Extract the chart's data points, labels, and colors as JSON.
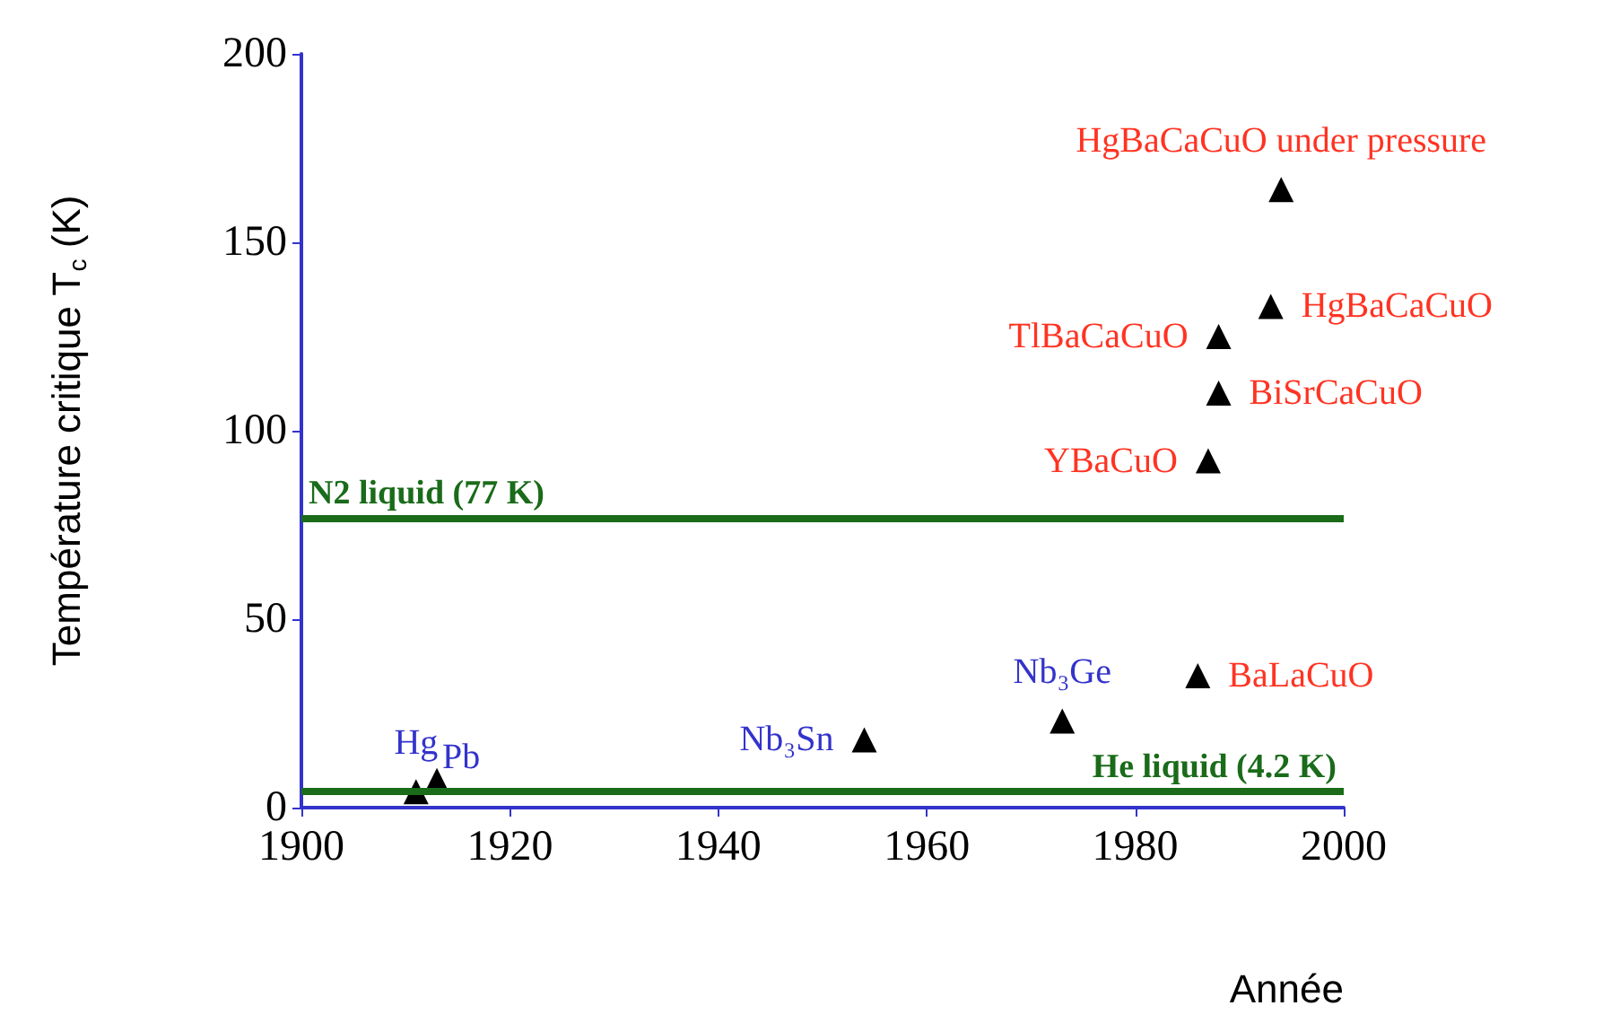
{
  "chart_data": {
    "type": "scatter",
    "xlabel": "Année",
    "ylabel": "Température critique T$_{c}$ (K)",
    "xlim": [
      1900,
      2000
    ],
    "xticks": [
      1900,
      1920,
      1940,
      1960,
      1980,
      2000
    ],
    "ylim": [
      0,
      200
    ],
    "yticks": [
      0,
      50,
      100,
      150,
      200
    ],
    "grid": false,
    "marker": "triangle",
    "series": [
      {
        "color": "#000000",
        "x": [
          1911,
          1913,
          1954,
          1973
        ],
        "values": [
          4.2,
          7.2,
          18,
          23
        ],
        "value_labels": [
          "Hg",
          "Pb",
          "Nb₃Sn",
          "Nb₃Ge"
        ]
      },
      {
        "color": "#000000",
        "x": [
          1986,
          1987,
          1988,
          1988,
          1993,
          1994
        ],
        "values": [
          35,
          92,
          110,
          125,
          133,
          164
        ],
        "value_labels": [
          "BaLaCuO",
          "YBaCuO",
          "BiSrCaCuO",
          "TlBaCaCuO",
          "HgBaCaCuO",
          "HgBaCaCuO under pressure"
        ]
      }
    ],
    "ref_lines": [
      {
        "axis": "y",
        "value": 77,
        "label": "N2 liquid (77 K)",
        "color": "#1a6b1a"
      },
      {
        "axis": "y",
        "value": 4.2,
        "label": "He liquid (4.2 K)",
        "color": "#1a6b1a"
      }
    ]
  }
}
